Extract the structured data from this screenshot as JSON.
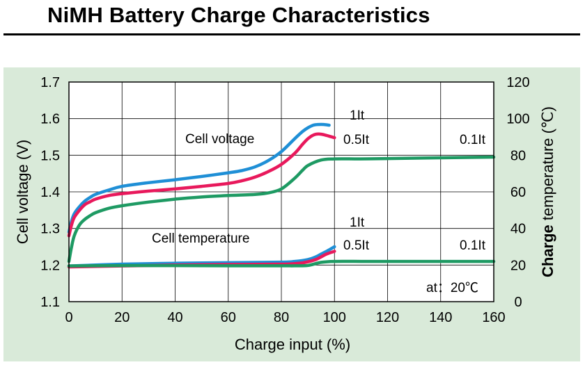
{
  "page": {
    "title": "NiMH Battery Charge Characteristics"
  },
  "colors": {
    "panel": "#d9ead9",
    "plot_bg": "#ffffff",
    "grid": "#000000",
    "1It": "#1f8fd6",
    "0.5It": "#e8195c",
    "0.1It": "#1e9a63"
  },
  "chart_data": {
    "type": "line",
    "xlabel": "Charge input (%)",
    "ylabel_left": "Cell voltage (V)",
    "ylabel_right_parts": [
      "Charge",
      " temperature (℃)"
    ],
    "xlim": [
      0,
      160
    ],
    "ylim_left": [
      1.1,
      1.7
    ],
    "ylim_right": [
      0,
      120
    ],
    "x_ticks": [
      0,
      20,
      40,
      60,
      80,
      100,
      120,
      140,
      160
    ],
    "y_left_ticks": [
      1.1,
      1.2,
      1.3,
      1.4,
      1.5,
      1.6,
      1.7
    ],
    "y_right_ticks": [
      0,
      20,
      40,
      60,
      80,
      100,
      120
    ],
    "grid": true,
    "annotations": {
      "cell_voltage": "Cell voltage",
      "cell_temperature": "Cell temperature",
      "condition": "at：20℃",
      "v_1It": "1It",
      "v_05It": "0.5It",
      "v_01It": "0.1It",
      "t_1It": "1It",
      "t_05It": "0.5It",
      "t_01It": "0.1It"
    },
    "series": [
      {
        "name": "1It",
        "axis": "left",
        "group": "voltage",
        "color": "#1f8fd6",
        "x": [
          0,
          1,
          2,
          4,
          6,
          8,
          10,
          15,
          20,
          30,
          40,
          50,
          60,
          65,
          70,
          75,
          80,
          85,
          88,
          90,
          92,
          94,
          96,
          98
        ],
        "y": [
          1.29,
          1.32,
          1.34,
          1.36,
          1.375,
          1.385,
          1.393,
          1.405,
          1.415,
          1.425,
          1.433,
          1.442,
          1.452,
          1.458,
          1.468,
          1.485,
          1.51,
          1.545,
          1.565,
          1.575,
          1.582,
          1.584,
          1.584,
          1.582
        ]
      },
      {
        "name": "0.5It",
        "axis": "left",
        "group": "voltage",
        "color": "#e8195c",
        "x": [
          0,
          1,
          2,
          4,
          6,
          8,
          10,
          15,
          20,
          30,
          40,
          50,
          60,
          65,
          70,
          75,
          80,
          85,
          88,
          90,
          92,
          94,
          96,
          98,
          100
        ],
        "y": [
          1.28,
          1.31,
          1.33,
          1.35,
          1.365,
          1.373,
          1.38,
          1.39,
          1.395,
          1.402,
          1.408,
          1.415,
          1.423,
          1.43,
          1.44,
          1.455,
          1.475,
          1.505,
          1.53,
          1.545,
          1.555,
          1.558,
          1.556,
          1.552,
          1.548
        ]
      },
      {
        "name": "0.1It",
        "axis": "left",
        "group": "voltage",
        "color": "#1e9a63",
        "x": [
          0,
          1,
          2,
          4,
          6,
          8,
          10,
          15,
          20,
          30,
          40,
          50,
          60,
          70,
          75,
          80,
          85,
          88,
          90,
          95,
          100,
          110,
          120,
          140,
          160
        ],
        "y": [
          1.21,
          1.25,
          1.28,
          1.31,
          1.325,
          1.335,
          1.343,
          1.355,
          1.362,
          1.372,
          1.38,
          1.386,
          1.39,
          1.393,
          1.397,
          1.408,
          1.437,
          1.459,
          1.472,
          1.487,
          1.49,
          1.49,
          1.491,
          1.493,
          1.495
        ]
      },
      {
        "name": "1It",
        "axis": "right",
        "group": "temperature",
        "color": "#1f8fd6",
        "x": [
          0,
          20,
          40,
          60,
          80,
          85,
          90,
          93,
          95,
          97,
          100
        ],
        "y": [
          19.5,
          20.5,
          21,
          21.3,
          21.6,
          22,
          23,
          24.5,
          26,
          27.5,
          30
        ]
      },
      {
        "name": "0.5It",
        "axis": "right",
        "group": "temperature",
        "color": "#e8195c",
        "x": [
          0,
          20,
          40,
          60,
          80,
          85,
          88,
          90,
          93,
          95,
          97,
          100
        ],
        "y": [
          19,
          19.5,
          20,
          20.3,
          20.5,
          20.8,
          21.2,
          21.8,
          23,
          24.5,
          26,
          27.5
        ]
      },
      {
        "name": "0.1It",
        "axis": "right",
        "group": "temperature",
        "color": "#1e9a63",
        "x": [
          0,
          20,
          40,
          60,
          80,
          85,
          90,
          95,
          100,
          110,
          120,
          140,
          160
        ],
        "y": [
          19.5,
          19.7,
          19.7,
          19.6,
          19.6,
          19.6,
          19.8,
          21.5,
          22,
          22,
          22,
          22,
          22
        ]
      }
    ]
  }
}
